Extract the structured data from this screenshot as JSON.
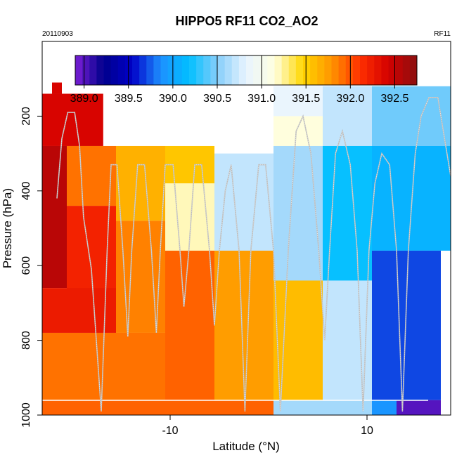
{
  "chart_data": {
    "type": "heatmap",
    "title": "HIPPO5 RF11 CO2_AO2",
    "date": "20110903",
    "flight": "RF11",
    "xlabel": "Latitude (°N)",
    "ylabel": "Pressure (hPa)",
    "x_ticks": [
      -10,
      10
    ],
    "y_ticks": [
      200,
      400,
      600,
      800,
      1000
    ],
    "xlim": [
      -23,
      18.5
    ],
    "ylim": [
      1000,
      0
    ],
    "colorbar": {
      "ticks": [
        389.0,
        389.5,
        390.0,
        390.5,
        391.0,
        391.5,
        392.0,
        392.5
      ],
      "tick_labels": [
        "389.0",
        "389.5",
        "390.0",
        "390.5",
        "391.0",
        "391.5",
        "392.0",
        "392.5"
      ],
      "range": [
        388.9,
        392.75
      ],
      "colors": [
        "#7b1fd6",
        "#00008b",
        "#0000c8",
        "#1e90ff",
        "#00bfff",
        "#87cefa",
        "#e8f4ff",
        "#ffffe0",
        "#ffd700",
        "#ff9500",
        "#ff3000",
        "#d40000",
        "#8b1010"
      ]
    },
    "cells": [
      {
        "x0": -22.0,
        "x1": -21.0,
        "p0": 110,
        "p1": 140,
        "v": 392.4
      },
      {
        "x0": -23.0,
        "x1": -16.8,
        "p0": 140,
        "p1": 280,
        "v": 392.4
      },
      {
        "x0": -23.0,
        "x1": -20.5,
        "p0": 280,
        "p1": 660,
        "v": 392.55
      },
      {
        "x0": -20.5,
        "x1": -15.5,
        "p0": 280,
        "p1": 440,
        "v": 391.9
      },
      {
        "x0": -20.5,
        "x1": -15.5,
        "p0": 440,
        "p1": 680,
        "v": 392.2
      },
      {
        "x0": -23.0,
        "x1": -15.5,
        "p0": 660,
        "p1": 780,
        "v": 392.25
      },
      {
        "x0": -15.5,
        "x1": -10.5,
        "p0": 280,
        "p1": 480,
        "v": 391.65
      },
      {
        "x0": -15.5,
        "x1": -10.5,
        "p0": 480,
        "p1": 780,
        "v": 391.85
      },
      {
        "x0": -23.0,
        "x1": -10.5,
        "p0": 780,
        "p1": 960,
        "v": 391.9
      },
      {
        "x0": -10.5,
        "x1": -5.5,
        "p0": 280,
        "p1": 380,
        "v": 391.55
      },
      {
        "x0": -10.5,
        "x1": -5.5,
        "p0": 380,
        "p1": 560,
        "v": 391.2
      },
      {
        "x0": -10.5,
        "x1": -5.5,
        "p0": 560,
        "p1": 960,
        "v": 391.95
      },
      {
        "x0": -5.5,
        "x1": 0.5,
        "p0": 300,
        "p1": 560,
        "v": 390.7
      },
      {
        "x0": -5.5,
        "x1": 0.5,
        "p0": 560,
        "p1": 960,
        "v": 391.75
      },
      {
        "x0": 0.5,
        "x1": 5.5,
        "p0": 120,
        "p1": 200,
        "v": 390.85
      },
      {
        "x0": 0.5,
        "x1": 5.5,
        "p0": 200,
        "p1": 280,
        "v": 391.15
      },
      {
        "x0": 0.5,
        "x1": 5.5,
        "p0": 280,
        "p1": 640,
        "v": 390.6
      },
      {
        "x0": 0.5,
        "x1": 5.5,
        "p0": 640,
        "p1": 960,
        "v": 391.6
      },
      {
        "x0": 5.5,
        "x1": 10.5,
        "p0": 120,
        "p1": 280,
        "v": 390.7
      },
      {
        "x0": 5.5,
        "x1": 10.5,
        "p0": 280,
        "p1": 640,
        "v": 390.2
      },
      {
        "x0": 5.5,
        "x1": 10.5,
        "p0": 640,
        "p1": 960,
        "v": 390.7
      },
      {
        "x0": 10.5,
        "x1": 18.5,
        "p0": 120,
        "p1": 280,
        "v": 390.45
      },
      {
        "x0": 10.5,
        "x1": 18.5,
        "p0": 280,
        "p1": 560,
        "v": 390.1
      },
      {
        "x0": 10.5,
        "x1": 17.5,
        "p0": 560,
        "p1": 960,
        "v": 389.7
      },
      {
        "x0": -23.0,
        "x1": 0.5,
        "p0": 960,
        "p1": 1000,
        "v": 391.95
      },
      {
        "x0": 0.5,
        "x1": 10.5,
        "p0": 960,
        "p1": 1000,
        "v": 390.6
      },
      {
        "x0": 10.5,
        "x1": 13.0,
        "p0": 960,
        "p1": 1000,
        "v": 389.9
      },
      {
        "x0": 13.0,
        "x1": 17.5,
        "p0": 960,
        "p1": 1000,
        "v": 389.0
      }
    ],
    "flight_track": [
      [
        -21.5,
        420
      ],
      [
        -21.0,
        260
      ],
      [
        -20.4,
        190
      ],
      [
        -19.7,
        190
      ],
      [
        -19.2,
        280
      ],
      [
        -18.8,
        470
      ],
      [
        -18.0,
        610
      ],
      [
        -17.0,
        990
      ],
      [
        -16.4,
        560
      ],
      [
        -16.0,
        330
      ],
      [
        -15.4,
        330
      ],
      [
        -14.8,
        560
      ],
      [
        -14.3,
        790
      ],
      [
        -13.9,
        560
      ],
      [
        -13.3,
        330
      ],
      [
        -12.6,
        330
      ],
      [
        -11.9,
        560
      ],
      [
        -11.4,
        780
      ],
      [
        -11.0,
        560
      ],
      [
        -10.5,
        330
      ],
      [
        -9.7,
        330
      ],
      [
        -9.0,
        560
      ],
      [
        -8.6,
        710
      ],
      [
        -8.1,
        560
      ],
      [
        -7.5,
        330
      ],
      [
        -6.8,
        330
      ],
      [
        -6.0,
        560
      ],
      [
        -5.5,
        760
      ],
      [
        -5.0,
        560
      ],
      [
        -4.4,
        400
      ],
      [
        -3.8,
        330
      ],
      [
        -3.0,
        560
      ],
      [
        -2.4,
        990
      ],
      [
        -1.8,
        560
      ],
      [
        -1.0,
        330
      ],
      [
        -0.3,
        330
      ],
      [
        0.5,
        560
      ],
      [
        1.2,
        990
      ],
      [
        2.0,
        560
      ],
      [
        2.8,
        240
      ],
      [
        3.5,
        200
      ],
      [
        4.3,
        300
      ],
      [
        5.1,
        560
      ],
      [
        5.7,
        800
      ],
      [
        6.2,
        560
      ],
      [
        6.8,
        300
      ],
      [
        7.5,
        240
      ],
      [
        8.3,
        330
      ],
      [
        9.0,
        560
      ],
      [
        9.6,
        990
      ],
      [
        10.2,
        560
      ],
      [
        10.8,
        380
      ],
      [
        11.5,
        300
      ],
      [
        12.3,
        330
      ],
      [
        13.0,
        560
      ],
      [
        13.6,
        990
      ],
      [
        14.2,
        560
      ],
      [
        14.9,
        300
      ],
      [
        15.5,
        200
      ],
      [
        16.3,
        150
      ],
      [
        17.2,
        150
      ],
      [
        18.0,
        280
      ],
      [
        18.5,
        360
      ]
    ],
    "grid": false
  }
}
